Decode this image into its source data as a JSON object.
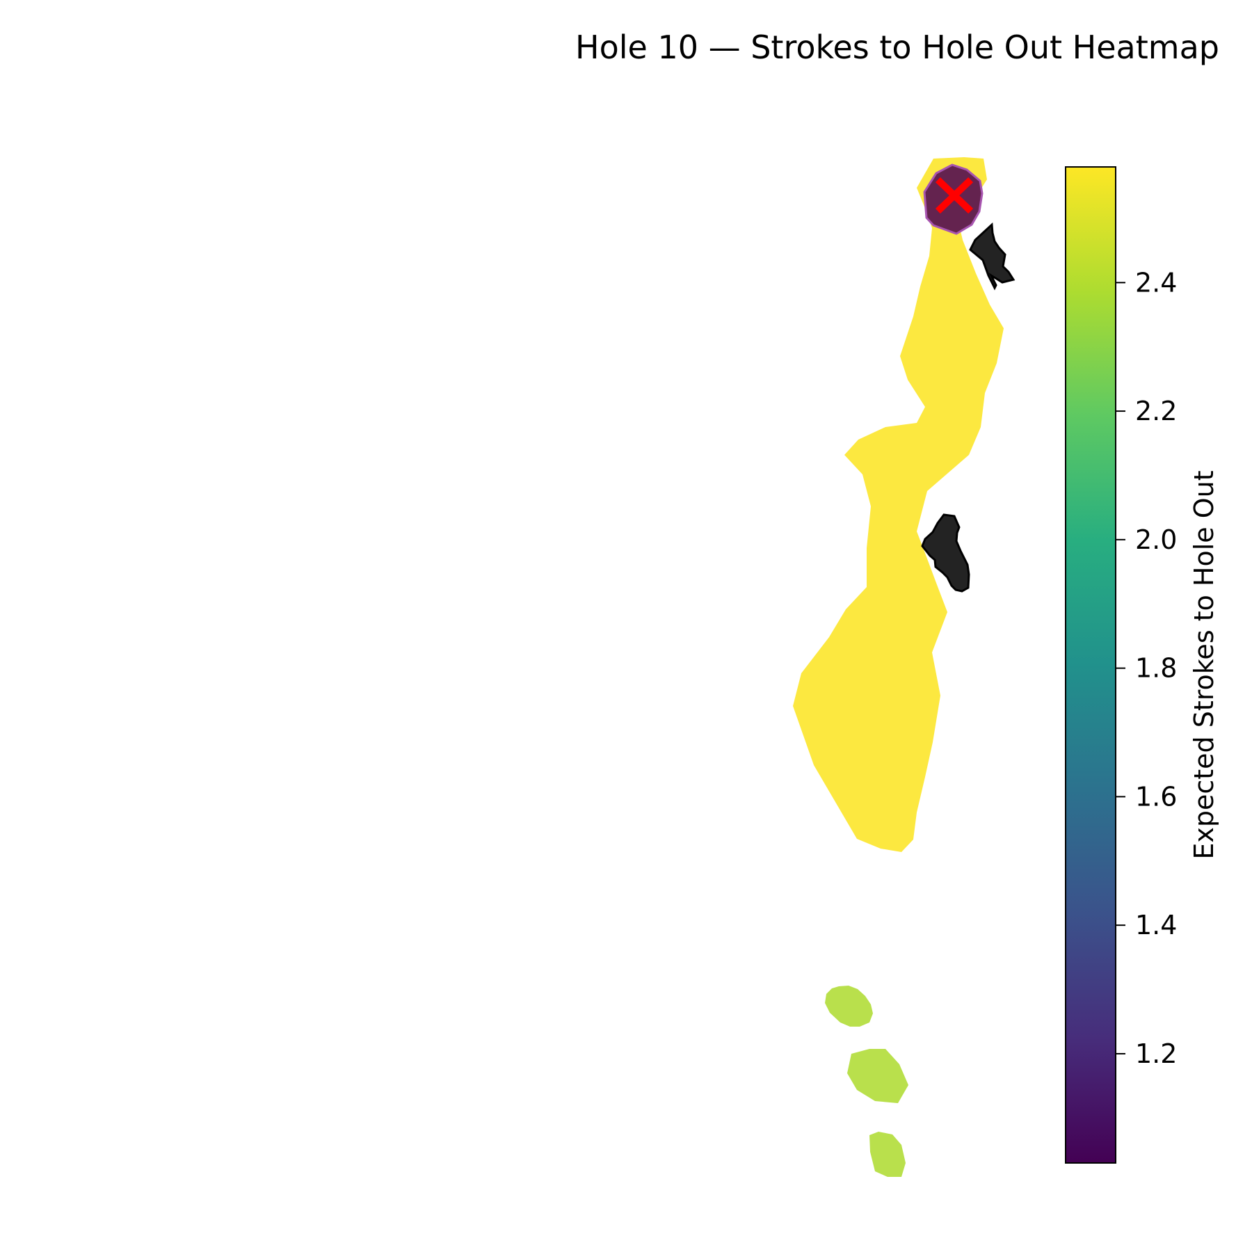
{
  "chart_data": {
    "type": "heatmap",
    "title": "Hole 10 — Strokes to Hole Out Heatmap",
    "colormap": "viridis",
    "colorbar": {
      "label": "Expected Strokes to Hole Out",
      "range": [
        1.03,
        2.58
      ],
      "ticks": [
        1.2,
        1.4,
        1.6,
        1.8,
        2.0,
        2.2,
        2.4
      ],
      "tick_labels": [
        "1.2",
        "1.4",
        "1.6",
        "1.8",
        "2.0",
        "2.2",
        "2.4"
      ],
      "placement": "right"
    },
    "regions": [
      {
        "name": "fairway",
        "value": 2.58,
        "color": "#fce840"
      },
      {
        "name": "green",
        "value": 1.03,
        "color": "#64234f"
      },
      {
        "name": "tee-upper",
        "value": 2.42,
        "color": "#b9e04c"
      },
      {
        "name": "tee-middle",
        "value": 2.42,
        "color": "#b9e04c"
      },
      {
        "name": "tee-lower",
        "value": 2.42,
        "color": "#b9e04c"
      }
    ],
    "hazards": [
      {
        "name": "bunker-upper",
        "color": "#232323"
      },
      {
        "name": "bunker-middle",
        "color": "#232323"
      }
    ],
    "pin_marker": {
      "symbol": "x",
      "color": "#ff0000"
    },
    "grid": false
  }
}
